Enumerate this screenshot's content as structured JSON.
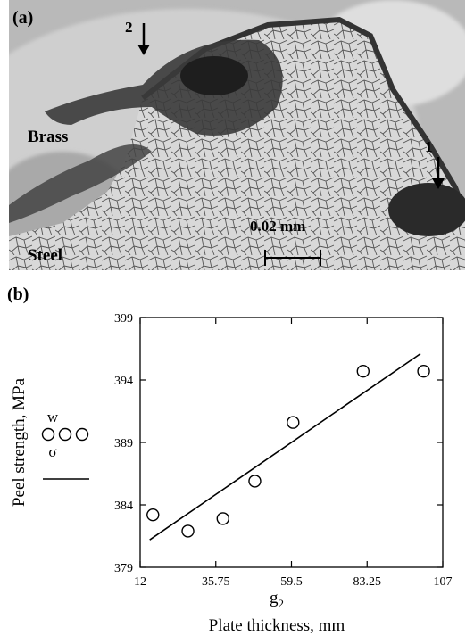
{
  "micrograph": {
    "panel_label": "(a)",
    "region_labels": {
      "upper": "Brass",
      "lower": "Steel"
    },
    "scale_bar": "0.02 mm",
    "arrows": [
      {
        "label": "1"
      },
      {
        "label": "2"
      }
    ]
  },
  "chart": {
    "panel_label": "(b)"
  },
  "chart_data": {
    "type": "scatter",
    "title": "",
    "xlabel": "Plate thickness, mm",
    "xlabel_symbol": "g",
    "xlabel_subscript": "2",
    "ylabel": "Peel strength, MPa",
    "xlim": [
      12,
      107
    ],
    "ylim": [
      379,
      399
    ],
    "x_ticks": [
      "12",
      "35.75",
      "59.5",
      "83.25",
      "107"
    ],
    "y_ticks": [
      "379",
      "384",
      "389",
      "394",
      "399"
    ],
    "legend": [
      {
        "symbol": "ooo",
        "label": "w"
      },
      {
        "symbol": "line",
        "label": "σ"
      }
    ],
    "series": [
      {
        "marker": "open-circle",
        "x": [
          16,
          27,
          38,
          48,
          60,
          82,
          101
        ],
        "y": [
          383.2,
          381.9,
          382.9,
          385.9,
          390.6,
          394.7,
          394.7
        ]
      },
      {
        "style": "line",
        "x": [
          15,
          100
        ],
        "y": [
          381.2,
          396.1
        ]
      }
    ],
    "grid": false
  }
}
